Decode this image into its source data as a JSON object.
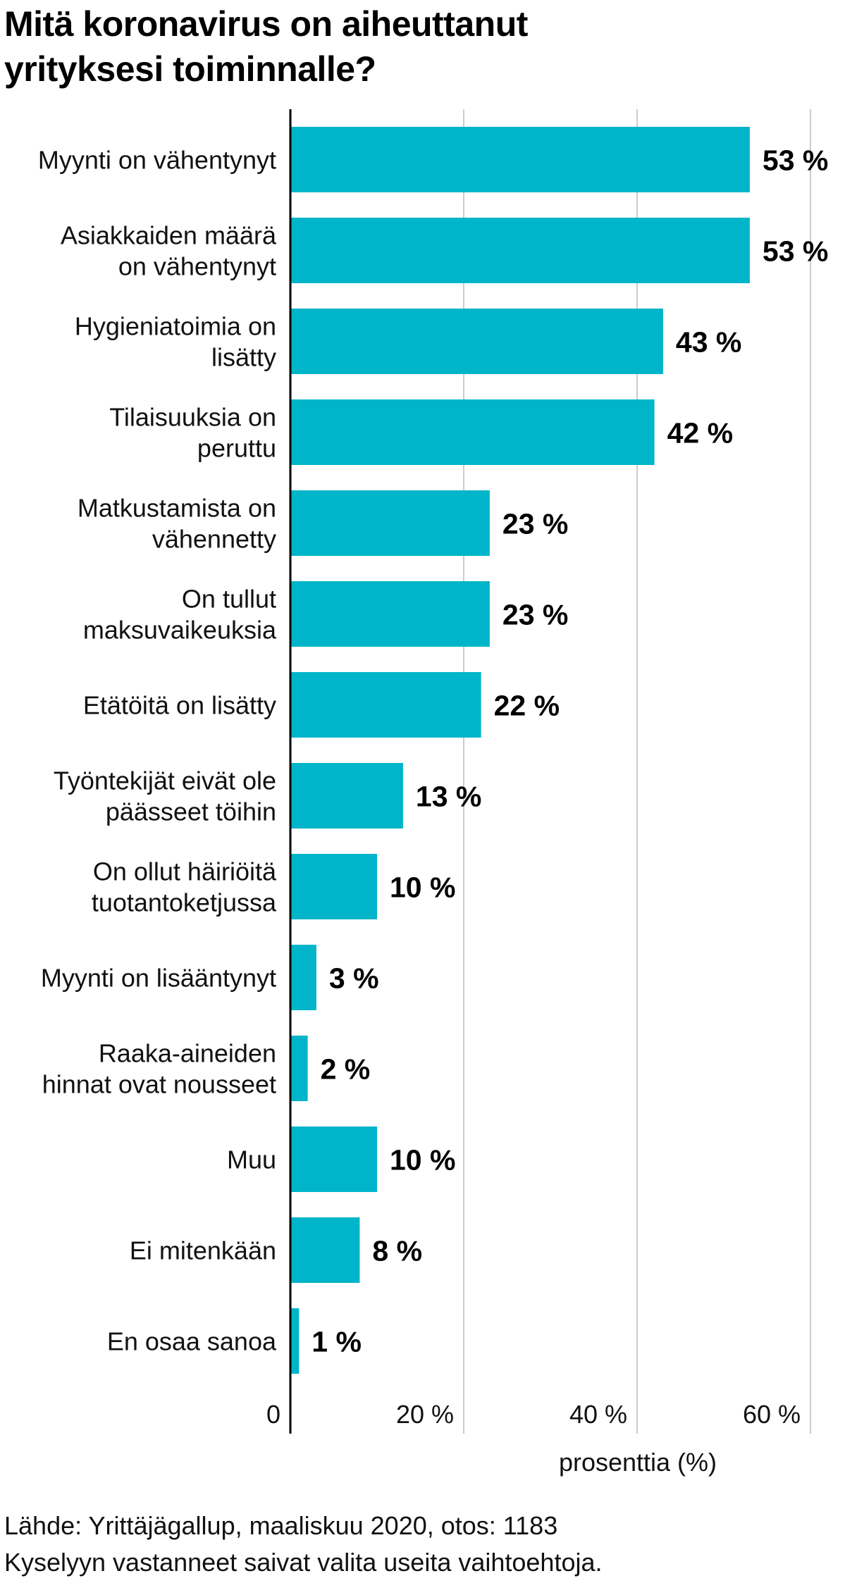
{
  "chart_data": {
    "type": "bar",
    "orientation": "horizontal",
    "title_lines": [
      "Mitä koronavirus on aiheuttanut",
      "yrityksesi toiminnalle?"
    ],
    "categories": [
      [
        "Myynti on vähentynyt"
      ],
      [
        "Asiakkaiden määrä",
        "on vähentynyt"
      ],
      [
        "Hygieniatoimia on",
        "lisätty"
      ],
      [
        "Tilaisuuksia on",
        "peruttu"
      ],
      [
        "Matkustamista on",
        "vähennetty"
      ],
      [
        "On tullut",
        "maksuvaikeuksia"
      ],
      [
        "Etätöitä on lisätty"
      ],
      [
        "Työntekijät eivät ole",
        "päässeet töihin"
      ],
      [
        "On ollut häiriöitä",
        "tuotantoketjussa"
      ],
      [
        "Myynti on lisääntynyt"
      ],
      [
        "Raaka-aineiden",
        "hinnat ovat nousseet"
      ],
      [
        "Muu"
      ],
      [
        "Ei mitenkään"
      ],
      [
        "En osaa sanoa"
      ]
    ],
    "values": [
      53,
      53,
      43,
      42,
      23,
      23,
      22,
      13,
      10,
      3,
      2,
      10,
      8,
      1
    ],
    "value_labels": [
      "53 %",
      "53 %",
      "43 %",
      "42 %",
      "23 %",
      "23 %",
      "22 %",
      "13 %",
      "10 %",
      "3 %",
      "2 %",
      "10 %",
      "8 %",
      "1 %"
    ],
    "xlim": [
      0,
      60
    ],
    "x_ticks": [
      0,
      20,
      40,
      60
    ],
    "x_tick_labels": [
      "0",
      "20 %",
      "40 %",
      "60 %"
    ],
    "xlabel": "prosenttia (%)",
    "ylabel": "",
    "grid": true,
    "bar_color": "#00b5c9",
    "grid_color": "#cccccc",
    "axis_color": "#000000"
  },
  "footnotes": {
    "source": "Lähde: Yrittäjägallup, maaliskuu 2020, otos: 1183",
    "note": "Kyselyyn vastanneet saivat valita useita vaihtoehtoja."
  }
}
